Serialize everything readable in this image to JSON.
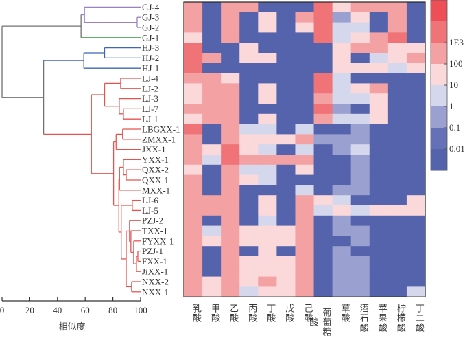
{
  "chart_data": {
    "type": "heatmap",
    "rows": [
      "GJ-4",
      "GJ-3",
      "GJ-2",
      "GJ-1",
      "HJ-3",
      "HJ-2",
      "HJ-1",
      "LJ-4",
      "LJ-2",
      "LJ-3",
      "LJ-7",
      "LJ-1",
      "LBGXX-1",
      "ZMXX-1",
      "JXX-1",
      "YXX-1",
      "QXX-2",
      "QXX-1",
      "MXX-1",
      "LJ-6",
      "LJ-5",
      "PZJ-2",
      "TXX-1",
      "FYXX-1",
      "PZJ-1",
      "FXX-1",
      "JiXX-1",
      "NXX-2",
      "NXX-1"
    ],
    "columns": [
      "乳酸",
      "甲酸",
      "乙酸",
      "丙酸",
      "丁酸",
      "戊酸",
      "己酸",
      "葡萄糖酸",
      "草酸",
      "酒石酸",
      "苹果酸",
      "柠檬酸",
      "丁二酸"
    ],
    "colorbar": {
      "tick_labels": [
        "1E3",
        "100",
        "10",
        "1",
        "0.1",
        "0.01"
      ],
      "bin_colors": [
        "#5563ad",
        "#6571b6",
        "#9aa0d0",
        "#d5d8ec",
        "#fbd8d9",
        "#f3a1a3",
        "#ef7377",
        "#ee4f57"
      ],
      "bins": [
        "<0.01",
        "0.01-0.1",
        "0.1-1",
        "1-10",
        "10-100",
        "100-1E3",
        "1E3-1E4",
        ">1E4"
      ]
    },
    "levels": [
      [
        5,
        0,
        5,
        5,
        0,
        0,
        0,
        6,
        4,
        5,
        5,
        5,
        0
      ],
      [
        5,
        0,
        5,
        0,
        4,
        0,
        5,
        6,
        2,
        4,
        0,
        5,
        0
      ],
      [
        5,
        0,
        5,
        0,
        4,
        0,
        4,
        6,
        3,
        3,
        0,
        5,
        0
      ],
      [
        4,
        0,
        5,
        0,
        0,
        0,
        0,
        6,
        3,
        4,
        5,
        6,
        0
      ],
      [
        6,
        0,
        0,
        4,
        0,
        0,
        0,
        0,
        4,
        5,
        5,
        4,
        4
      ],
      [
        6,
        5,
        0,
        4,
        4,
        0,
        0,
        0,
        4,
        0,
        3,
        4,
        5
      ],
      [
        6,
        0,
        0,
        0,
        0,
        0,
        0,
        0,
        4,
        4,
        4,
        3,
        4
      ],
      [
        5,
        5,
        4,
        0,
        0,
        0,
        0,
        6,
        3,
        0,
        0,
        0,
        0
      ],
      [
        4,
        5,
        5,
        0,
        4,
        0,
        0,
        6,
        3,
        4,
        5,
        0,
        0
      ],
      [
        4,
        5,
        5,
        0,
        4,
        0,
        0,
        5,
        3,
        3,
        4,
        0,
        0
      ],
      [
        5,
        5,
        5,
        0,
        0,
        0,
        0,
        6,
        2,
        0,
        4,
        0,
        0
      ],
      [
        4,
        5,
        5,
        0,
        4,
        0,
        0,
        5,
        3,
        3,
        4,
        0,
        0
      ],
      [
        6,
        0,
        5,
        3,
        3,
        0,
        3,
        0,
        0,
        2,
        0,
        0,
        0
      ],
      [
        5,
        0,
        5,
        4,
        4,
        4,
        5,
        2,
        2,
        2,
        0,
        0,
        0
      ],
      [
        5,
        4,
        6,
        4,
        3,
        0,
        3,
        0,
        2,
        3,
        0,
        0,
        0
      ],
      [
        5,
        3,
        6,
        5,
        5,
        5,
        5,
        0,
        0,
        2,
        0,
        0,
        0
      ],
      [
        4,
        0,
        5,
        3,
        3,
        0,
        4,
        0,
        0,
        2,
        0,
        0,
        0
      ],
      [
        5,
        0,
        5,
        4,
        3,
        0,
        0,
        0,
        0,
        2,
        0,
        0,
        0
      ],
      [
        5,
        0,
        5,
        0,
        0,
        0,
        3,
        0,
        2,
        2,
        0,
        0,
        0
      ],
      [
        5,
        5,
        5,
        0,
        4,
        0,
        5,
        4,
        3,
        0,
        0,
        0,
        4
      ],
      [
        5,
        5,
        5,
        0,
        4,
        0,
        5,
        3,
        4,
        3,
        4,
        4,
        4
      ],
      [
        5,
        0,
        5,
        0,
        3,
        0,
        5,
        0,
        2,
        0,
        0,
        0,
        0
      ],
      [
        5,
        3,
        5,
        4,
        4,
        4,
        5,
        0,
        2,
        2,
        0,
        0,
        0
      ],
      [
        5,
        4,
        5,
        4,
        4,
        4,
        5,
        0,
        0,
        2,
        0,
        0,
        0
      ],
      [
        5,
        0,
        5,
        0,
        4,
        0,
        5,
        0,
        2,
        0,
        0,
        0,
        0
      ],
      [
        5,
        0,
        5,
        4,
        4,
        4,
        5,
        0,
        2,
        2,
        0,
        0,
        0
      ],
      [
        5,
        0,
        5,
        4,
        4,
        4,
        5,
        0,
        2,
        2,
        0,
        0,
        0
      ],
      [
        5,
        4,
        5,
        4,
        5,
        4,
        5,
        0,
        2,
        2,
        0,
        0,
        0
      ],
      [
        5,
        4,
        5,
        3,
        4,
        4,
        5,
        0,
        2,
        2,
        0,
        0,
        3
      ]
    ],
    "dendrogram": {
      "xlabel": "相似度",
      "xlim": [
        0,
        100
      ],
      "xticks": [
        "0",
        "20",
        "40",
        "60",
        "80",
        "100"
      ],
      "cluster_colors": {
        "root": "#707070",
        "purple": "#9a80c6",
        "green": "#4ea45c",
        "blue": "#3f66b6",
        "red": "#e8534f"
      },
      "tree": {
        "h": 0,
        "c": "root",
        "k": [
          {
            "h": 57,
            "c": "root",
            "k": [
              {
                "h": 59.5,
                "c": "purple",
                "k": [
                  "GJ-4",
                  {
                    "h": 97.5,
                    "c": "purple",
                    "k": [
                      "GJ-3",
                      "GJ-2"
                    ]
                  }
                ]
              },
              "GJ-1"
            ]
          },
          {
            "h": 30,
            "c": "root",
            "k": [
              {
                "h": 59,
                "c": "blue",
                "k": [
                  {
                    "h": 74,
                    "c": "blue",
                    "k": [
                      "HJ-3",
                      "HJ-2"
                    ]
                  },
                  "HJ-1"
                ]
              },
              {
                "h": 64.5,
                "c": "red",
                "k": [
                  {
                    "h": 74,
                    "c": "red",
                    "k": [
                      {
                        "h": 85.6,
                        "c": "red",
                        "k": [
                          "LJ-4",
                          "LJ-2"
                        ]
                      },
                      {
                        "h": 84.6,
                        "c": "red",
                        "k": [
                          "LJ-3",
                          {
                            "h": 87.6,
                            "c": "red",
                            "k": [
                              "LJ-7",
                              "LJ-1"
                            ]
                          }
                        ]
                      }
                    ]
                  },
                  {
                    "h": 80.5,
                    "c": "red",
                    "k": [
                      {
                        "h": 82.3,
                        "c": "red",
                        "k": [
                          {
                            "h": 87,
                            "c": "red",
                            "k": [
                              "LBGXX-1",
                              "ZMXX-1"
                            ]
                          },
                          "JXX-1"
                        ]
                      },
                      {
                        "h": 84.3,
                        "c": "red",
                        "k": [
                          {
                            "h": 84.8,
                            "c": "red",
                            "k": [
                              {
                                "h": 87.6,
                                "c": "red",
                                "k": [
                                  "YXX-1",
                                  {
                                    "h": 89.6,
                                    "c": "red",
                                    "k": [
                                      "QXX-2",
                                      "QXX-1"
                                    ]
                                  }
                                ]
                              },
                              "MXX-1"
                            ]
                          },
                          {
                            "h": 86,
                            "c": "red",
                            "k": [
                              {
                                "h": 94,
                                "c": "red",
                                "k": [
                                  "LJ-6",
                                  "LJ-5"
                                ]
                              },
                              {
                                "h": 89.6,
                                "c": "red",
                                "k": [
                                  {
                                    "h": 92,
                                    "c": "red",
                                    "k": [
                                      "PZJ-2",
                                      {
                                        "h": 93,
                                        "c": "red",
                                        "k": [
                                          "TXX-1",
                                          {
                                            "h": 95,
                                            "c": "red",
                                            "k": [
                                              "FYXX-1",
                                              {
                                                "h": 97,
                                                "c": "red",
                                                "k": [
                                                  {
                                                    "h": 98,
                                                    "c": "red",
                                                    "k": [
                                                      "PZJ-1",
                                                      "FXX-1"
                                                    ]
                                                  },
                                                  "JiXX-1"
                                                ]
                                              }
                                            ]
                                          }
                                        ]
                                      }
                                    ]
                                  },
                                  {
                                    "h": 93.5,
                                    "c": "red",
                                    "k": [
                                      "NXX-2",
                                      "NXX-1"
                                    ]
                                  }
                                ]
                              }
                            ]
                          }
                        ]
                      }
                    ]
                  }
                ]
              }
            ]
          }
        ]
      },
      "leaf_colors": {
        "GJ-4": "purple",
        "GJ-3": "purple",
        "GJ-2": "purple",
        "GJ-1": "green",
        "HJ-3": "blue",
        "HJ-2": "blue",
        "HJ-1": "blue"
      }
    }
  }
}
